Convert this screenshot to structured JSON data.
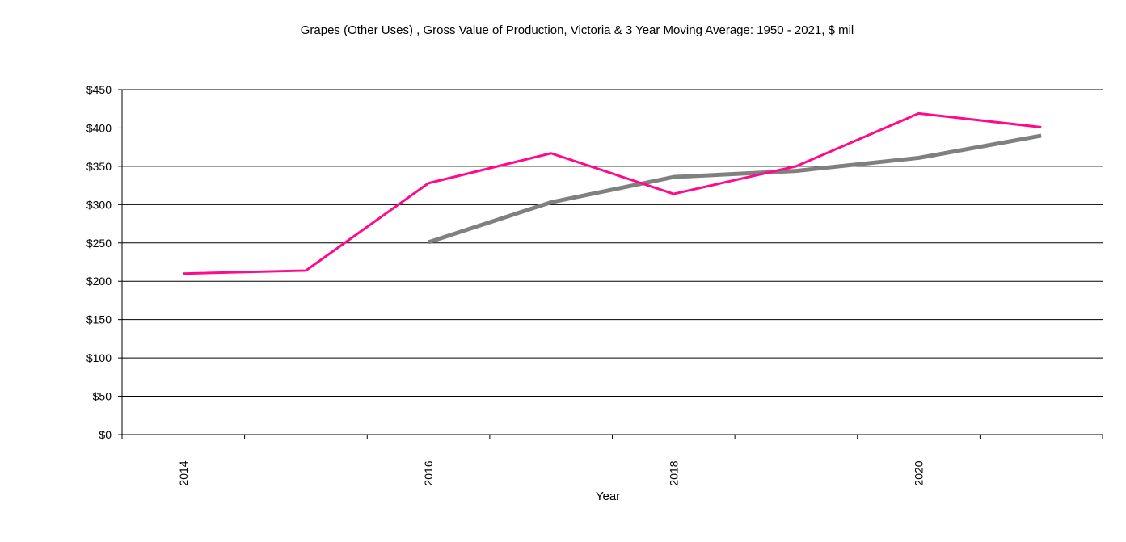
{
  "chart_data": {
    "type": "line",
    "title": "Grapes (Other Uses) , Gross Value of Production, Victoria & 3 Year Moving Average: 1950 - 2021, $ mil",
    "xlabel": "Year",
    "ylabel": "",
    "categories": [
      "2014",
      "2015",
      "2016",
      "2017",
      "2018",
      "2019",
      "2020",
      "2021"
    ],
    "x_tick_labels": [
      "2014",
      "",
      "2016",
      "",
      "2018",
      "",
      "2020",
      ""
    ],
    "ylim": [
      0,
      450
    ],
    "y_ticks": [
      0,
      50,
      100,
      150,
      200,
      250,
      300,
      350,
      400,
      450
    ],
    "y_tick_labels": [
      "$0",
      "$50",
      "$100",
      "$150",
      "$200",
      "$250",
      "$300",
      "$350",
      "$400",
      "$450"
    ],
    "grid": true,
    "series": [
      {
        "name": "Gross Value of Production",
        "color": "#ff0a8c",
        "values": [
          210,
          214,
          328,
          367,
          314,
          350,
          419,
          401
        ]
      },
      {
        "name": "3 Year Moving Average",
        "color": "#808080",
        "values": [
          null,
          null,
          251,
          303,
          336,
          344,
          361,
          390
        ]
      }
    ]
  }
}
